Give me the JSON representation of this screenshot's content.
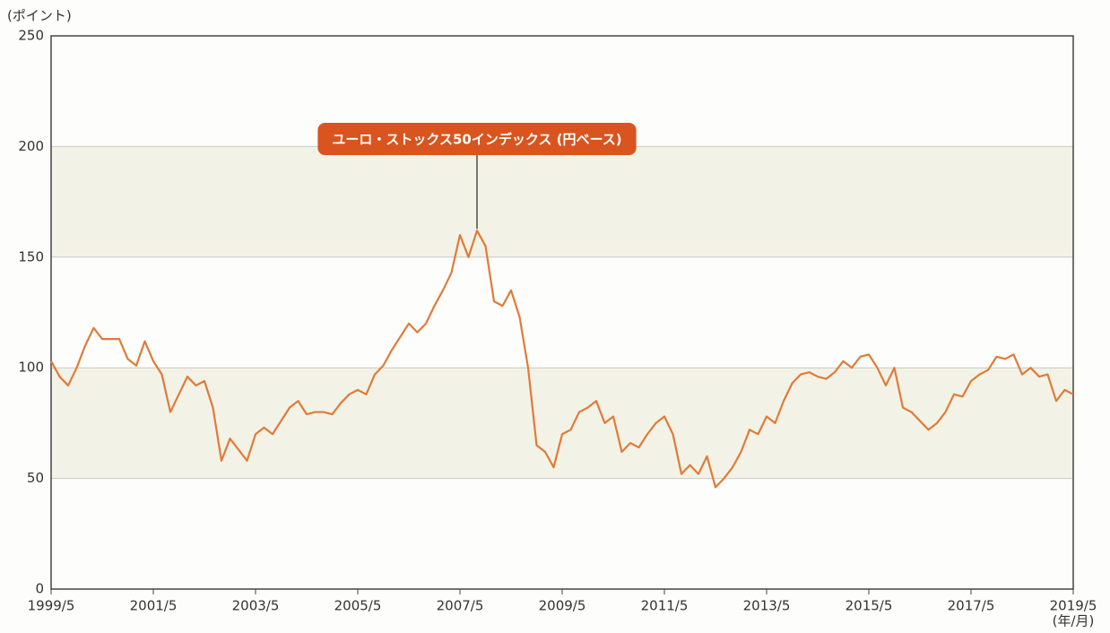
{
  "chart_data": {
    "type": "line",
    "y_unit_label": "(ポイント)",
    "x_unit_label": "(年/月)",
    "annotation": {
      "text": "ユーロ・ストックス50インデックス (円ベース)",
      "x": "2007/9",
      "color": "#d9541e"
    },
    "x": [
      "1999/5",
      "1999/7",
      "1999/9",
      "1999/11",
      "2000/1",
      "2000/3",
      "2000/5",
      "2000/7",
      "2000/9",
      "2000/11",
      "2001/1",
      "2001/3",
      "2001/5",
      "2001/7",
      "2001/9",
      "2001/11",
      "2002/1",
      "2002/3",
      "2002/5",
      "2002/7",
      "2002/9",
      "2002/11",
      "2003/1",
      "2003/3",
      "2003/5",
      "2003/7",
      "2003/9",
      "2003/11",
      "2004/1",
      "2004/3",
      "2004/5",
      "2004/7",
      "2004/9",
      "2004/11",
      "2005/1",
      "2005/3",
      "2005/5",
      "2005/7",
      "2005/9",
      "2005/11",
      "2006/1",
      "2006/3",
      "2006/5",
      "2006/7",
      "2006/9",
      "2006/11",
      "2007/1",
      "2007/3",
      "2007/5",
      "2007/7",
      "2007/9",
      "2007/11",
      "2008/1",
      "2008/3",
      "2008/5",
      "2008/7",
      "2008/9",
      "2008/11",
      "2009/1",
      "2009/3",
      "2009/5",
      "2009/7",
      "2009/9",
      "2009/11",
      "2010/1",
      "2010/3",
      "2010/5",
      "2010/7",
      "2010/9",
      "2010/11",
      "2011/1",
      "2011/3",
      "2011/5",
      "2011/7",
      "2011/9",
      "2011/11",
      "2012/1",
      "2012/3",
      "2012/5",
      "2012/7",
      "2012/9",
      "2012/11",
      "2013/1",
      "2013/3",
      "2013/5",
      "2013/7",
      "2013/9",
      "2013/11",
      "2014/1",
      "2014/3",
      "2014/5",
      "2014/7",
      "2014/9",
      "2014/11",
      "2015/1",
      "2015/3",
      "2015/5",
      "2015/7",
      "2015/9",
      "2015/11",
      "2016/1",
      "2016/3",
      "2016/5",
      "2016/7",
      "2016/9",
      "2016/11",
      "2017/1",
      "2017/3",
      "2017/5",
      "2017/7",
      "2017/9",
      "2017/11",
      "2018/1",
      "2018/3",
      "2018/5",
      "2018/7",
      "2018/9",
      "2018/11",
      "2019/1",
      "2019/3",
      "2019/5"
    ],
    "series": [
      {
        "color": "#e07b39",
        "values": [
          103,
          96,
          92,
          100,
          110,
          118,
          113,
          113,
          113,
          104,
          101,
          112,
          103,
          97,
          80,
          88,
          96,
          92,
          94,
          82,
          58,
          68,
          63,
          58,
          70,
          73,
          70,
          76,
          82,
          85,
          79,
          80,
          80,
          79,
          84,
          88,
          90,
          88,
          97,
          101,
          108,
          114,
          120,
          116,
          120,
          128,
          135,
          143,
          160,
          150,
          162,
          155,
          130,
          128,
          135,
          123,
          100,
          65,
          62,
          55,
          70,
          72,
          80,
          82,
          85,
          75,
          78,
          62,
          66,
          64,
          70,
          75,
          78,
          70,
          52,
          56,
          52,
          60,
          46,
          50,
          55,
          62,
          72,
          70,
          78,
          75,
          85,
          93,
          97,
          98,
          96,
          95,
          98,
          103,
          100,
          105,
          106,
          100,
          92,
          100,
          82,
          80,
          76,
          72,
          75,
          80,
          88,
          87,
          94,
          97,
          99,
          105,
          104,
          106,
          97,
          100,
          96,
          97,
          85,
          90,
          88
        ]
      }
    ],
    "xlim": [
      "1999/5",
      "2019/5"
    ],
    "xticks": [
      "1999/5",
      "2001/5",
      "2003/5",
      "2005/5",
      "2007/5",
      "2009/5",
      "2011/5",
      "2013/5",
      "2015/5",
      "2017/5",
      "2019/5"
    ],
    "ylim": [
      0,
      250
    ],
    "yticks": [
      0,
      50,
      100,
      150,
      200,
      250
    ],
    "grid": true,
    "shaded_bands": [
      [
        50,
        100
      ],
      [
        150,
        200
      ]
    ]
  }
}
